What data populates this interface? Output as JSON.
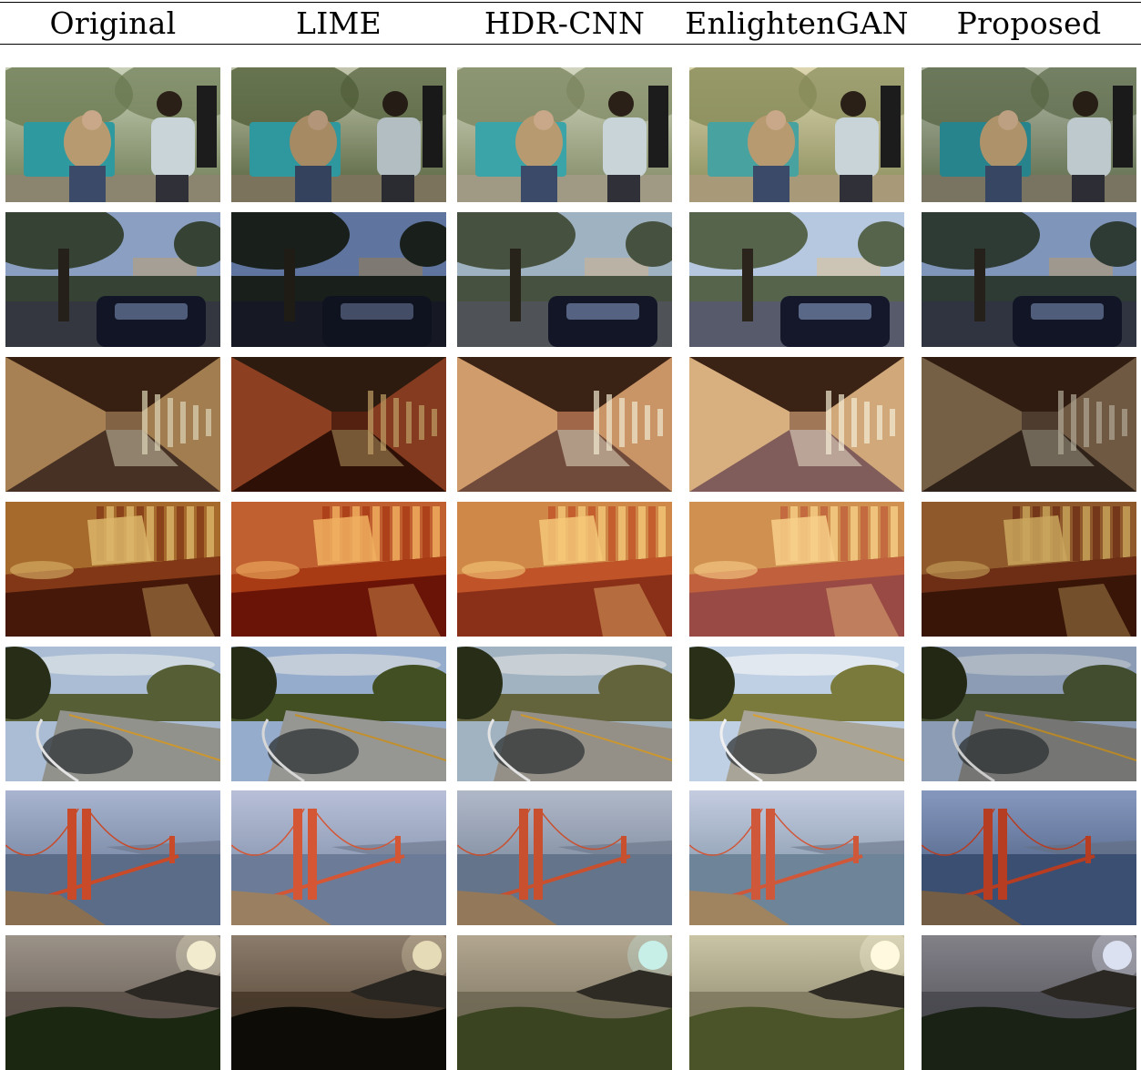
{
  "columns": [
    "Original",
    "LIME",
    "HDR-CNN",
    "EnlightenGAN",
    "Proposed"
  ],
  "rows": [
    {
      "scene": "people",
      "tints": [
        {
          "sky": "#c8d0b8",
          "mid": "#6c7a52",
          "ground": "#8b8570",
          "accent": "#2e9aa0",
          "shade": 0.0
        },
        {
          "sky": "#d8dcc0",
          "mid": "#5a6a40",
          "ground": "#8a8066",
          "accent": "#35aab0",
          "shade": 0.1
        },
        {
          "sky": "#d2d6c0",
          "mid": "#7c8660",
          "ground": "#a09a84",
          "accent": "#3aa4a8",
          "shade": 0.0
        },
        {
          "sky": "#ddd6b0",
          "mid": "#868a58",
          "ground": "#a89a78",
          "accent": "#48a2a0",
          "shade": 0.0
        },
        {
          "sky": "#bcc4b0",
          "mid": "#606e4c",
          "ground": "#807a68",
          "accent": "#2a8c94",
          "shade": 0.05
        }
      ]
    },
    {
      "scene": "street",
      "tints": [
        {
          "sky": "#9ab2d8",
          "mid": "#3c4a3a",
          "ground": "#3a3e48",
          "accent": "#b8b2a8",
          "shade": 0.1
        },
        {
          "sky": "#7f9cd6",
          "mid": "#222a24",
          "ground": "#1e2230",
          "accent": "#a8a298",
          "shade": 0.25
        },
        {
          "sky": "#a8bccc",
          "mid": "#4a5644",
          "ground": "#54585c",
          "accent": "#c4bcae",
          "shade": 0.05
        },
        {
          "sky": "#b6c8e0",
          "mid": "#56644c",
          "ground": "#565a6a",
          "accent": "#ccc4b4",
          "shade": 0.0
        },
        {
          "sky": "#8ea6d0",
          "mid": "#34423a",
          "ground": "#363a48",
          "accent": "#b0aaa0",
          "shade": 0.1
        }
      ]
    },
    {
      "scene": "arcade",
      "tints": [
        {
          "sky": "#8a6a48",
          "mid": "#b08858",
          "ground": "#4a3426",
          "accent": "#e8e0c0",
          "shade": 0.05
        },
        {
          "sky": "#6a2a14",
          "mid": "#b0502a",
          "ground": "#3a1408",
          "accent": "#f0c880",
          "shade": 0.2
        },
        {
          "sky": "#a06848",
          "mid": "#d09c6c",
          "ground": "#704a3a",
          "accent": "#f0e8d0",
          "shade": 0.0
        },
        {
          "sky": "#a07858",
          "mid": "#d8b080",
          "ground": "#805c5a",
          "accent": "#f4ecd4",
          "shade": 0.0
        },
        {
          "sky": "#5c4838",
          "mid": "#8a7052",
          "ground": "#38281e",
          "accent": "#d0c8b0",
          "shade": 0.15
        }
      ]
    },
    {
      "scene": "library",
      "tints": [
        {
          "sky": "#b07030",
          "mid": "#8a3c18",
          "ground": "#4a1a0a",
          "accent": "#e8c070",
          "shade": 0.05
        },
        {
          "sky": "#c06030",
          "mid": "#a83a14",
          "ground": "#6a1408",
          "accent": "#f0b060",
          "shade": 0.0
        },
        {
          "sky": "#d08848",
          "mid": "#c05428",
          "ground": "#8a3018",
          "accent": "#f4c878",
          "shade": 0.0
        },
        {
          "sky": "#d09050",
          "mid": "#c0603c",
          "ground": "#9a4a44",
          "accent": "#f8d088",
          "shade": 0.0
        },
        {
          "sky": "#a06430",
          "mid": "#7a3418",
          "ground": "#40180a",
          "accent": "#e0b868",
          "shade": 0.1
        }
      ]
    },
    {
      "scene": "road",
      "tints": [
        {
          "sky": "#b4c8e0",
          "mid": "#5a6438",
          "ground": "#9a9a94",
          "accent": "#e8f0f4",
          "shade": 0.05
        },
        {
          "sky": "#a8c0e4",
          "mid": "#4a5828",
          "ground": "#a8a8a4",
          "accent": "#f0f4f8",
          "shade": 0.1
        },
        {
          "sky": "#aabccc",
          "mid": "#6a6a40",
          "ground": "#9c9890",
          "accent": "#e4e8ea",
          "shade": 0.05
        },
        {
          "sky": "#c0d0e4",
          "mid": "#7a7a3c",
          "ground": "#a8a498",
          "accent": "#f0f2f4",
          "shade": 0.0
        },
        {
          "sky": "#a4b8d4",
          "mid": "#4e5a38",
          "ground": "#8a8a88",
          "accent": "#dce6ee",
          "shade": 0.15
        }
      ]
    },
    {
      "scene": "bridge",
      "tints": [
        {
          "sky": "#a8b4d0",
          "mid": "#5a6c88",
          "ground": "#8a7050",
          "accent": "#c84a28",
          "shade": 0.0
        },
        {
          "sky": "#b8c0d8",
          "mid": "#6c7c98",
          "ground": "#9a8060",
          "accent": "#d45634",
          "shade": 0.0
        },
        {
          "sky": "#b0b8c8",
          "mid": "#64748a",
          "ground": "#94785a",
          "accent": "#c8502e",
          "shade": 0.0
        },
        {
          "sky": "#c4cce0",
          "mid": "#6e8498",
          "ground": "#a08460",
          "accent": "#d0583a",
          "shade": 0.0
        },
        {
          "sky": "#8ea0c8",
          "mid": "#3e5478",
          "ground": "#7a6248",
          "accent": "#c04024",
          "shade": 0.05
        }
      ]
    },
    {
      "scene": "sunset",
      "tints": [
        {
          "sky": "#a49a90",
          "mid": "#5a5048",
          "ground": "#1e2a14",
          "accent": "#fff8d8",
          "shade": 0.05
        },
        {
          "sky": "#9c8a78",
          "mid": "#4a3a2a",
          "ground": "#100e08",
          "accent": "#fff4cc",
          "shade": 0.1
        },
        {
          "sky": "#b2a690",
          "mid": "#6a6450",
          "ground": "#3a4420",
          "accent": "#c8f0e8",
          "shade": 0.0
        },
        {
          "sky": "#c8c4a4",
          "mid": "#7a745c",
          "ground": "#4a5428",
          "accent": "#fffae0",
          "shade": 0.0
        },
        {
          "sky": "#8a8890",
          "mid": "#4a4a50",
          "ground": "#1c2418",
          "accent": "#e8eeff",
          "shade": 0.05
        }
      ]
    }
  ]
}
